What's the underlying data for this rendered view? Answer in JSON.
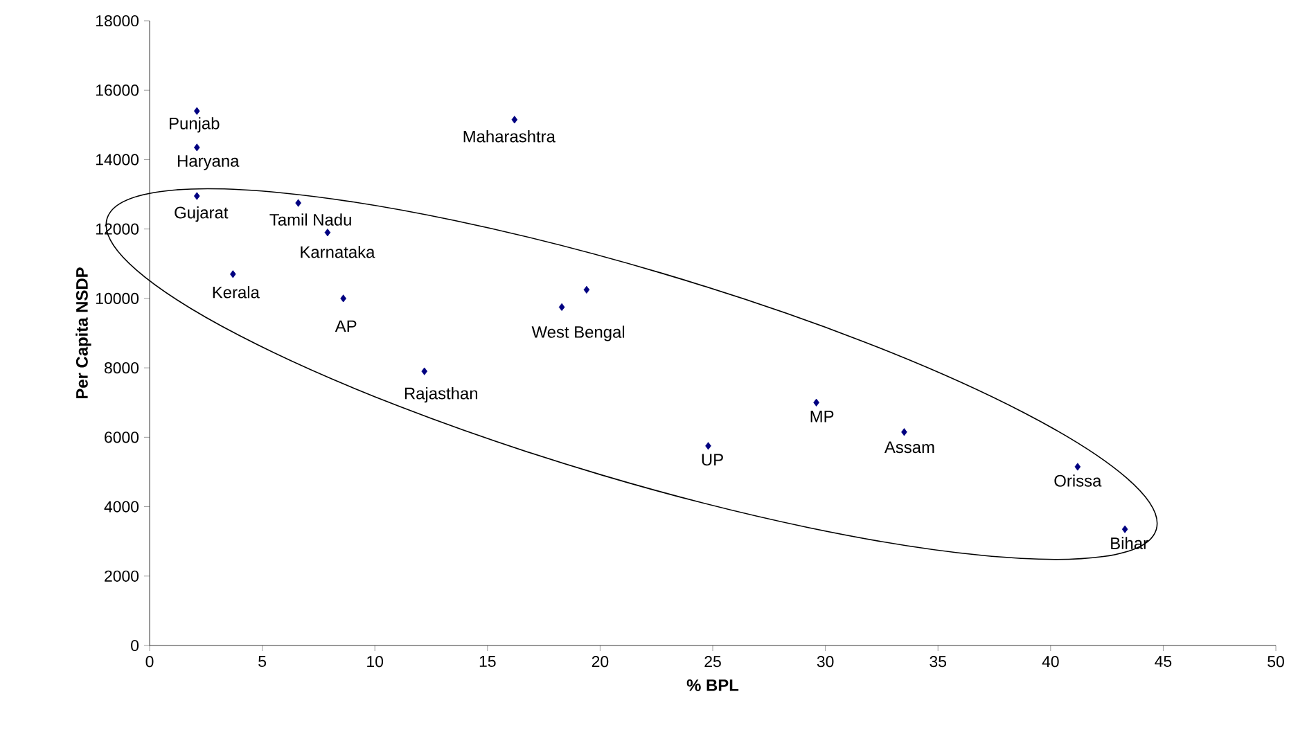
{
  "chart_data": {
    "type": "scatter",
    "xlabel": "% BPL",
    "ylabel": "Per Capita NSDP",
    "x": [
      2.1,
      2.1,
      2.1,
      6.6,
      7.9,
      3.7,
      8.6,
      16.2,
      18.3,
      19.4,
      12.2,
      24.8,
      29.6,
      33.5,
      41.2,
      43.3
    ],
    "values": [
      15400,
      14350,
      12950,
      12750,
      11900,
      10700,
      10000,
      15150,
      9750,
      10250,
      7900,
      5750,
      7000,
      6150,
      5150,
      3350
    ],
    "color": "#000080",
    "marker": "diamond",
    "grid": false,
    "xlim": [
      0,
      50
    ],
    "xticks": [
      0,
      5,
      10,
      15,
      20,
      25,
      30,
      35,
      40,
      45,
      50
    ],
    "ylim": [
      0,
      18000
    ],
    "yticks": [
      0,
      2000,
      4000,
      6000,
      8000,
      10000,
      12000,
      14000,
      16000,
      18000
    ],
    "annotations": [
      {
        "text": "Punjab",
        "x": 2.1,
        "y": 15400
      },
      {
        "text": "Haryana",
        "x": 2.1,
        "y": 14350
      },
      {
        "text": "Gujarat",
        "x": 2.1,
        "y": 12950
      },
      {
        "text": "Tamil Nadu",
        "x": 6.6,
        "y": 12750
      },
      {
        "text": "Karnataka",
        "x": 7.9,
        "y": 11900
      },
      {
        "text": "Kerala",
        "x": 3.7,
        "y": 10700
      },
      {
        "text": "AP",
        "x": 8.6,
        "y": 10000
      },
      {
        "text": "Maharashtra",
        "x": 16.2,
        "y": 15150
      },
      {
        "text": "West Bengal",
        "x": 18.3,
        "y": 9750
      },
      {
        "text": "Rajasthan",
        "x": 12.2,
        "y": 7900
      },
      {
        "text": "UP",
        "x": 24.8,
        "y": 5750
      },
      {
        "text": "MP",
        "x": 29.6,
        "y": 7000
      },
      {
        "text": "Assam",
        "x": 33.5,
        "y": 6150
      },
      {
        "text": "Orissa",
        "x": 41.2,
        "y": 5150
      },
      {
        "text": "Bihar",
        "x": 43.3,
        "y": 3350
      }
    ]
  }
}
